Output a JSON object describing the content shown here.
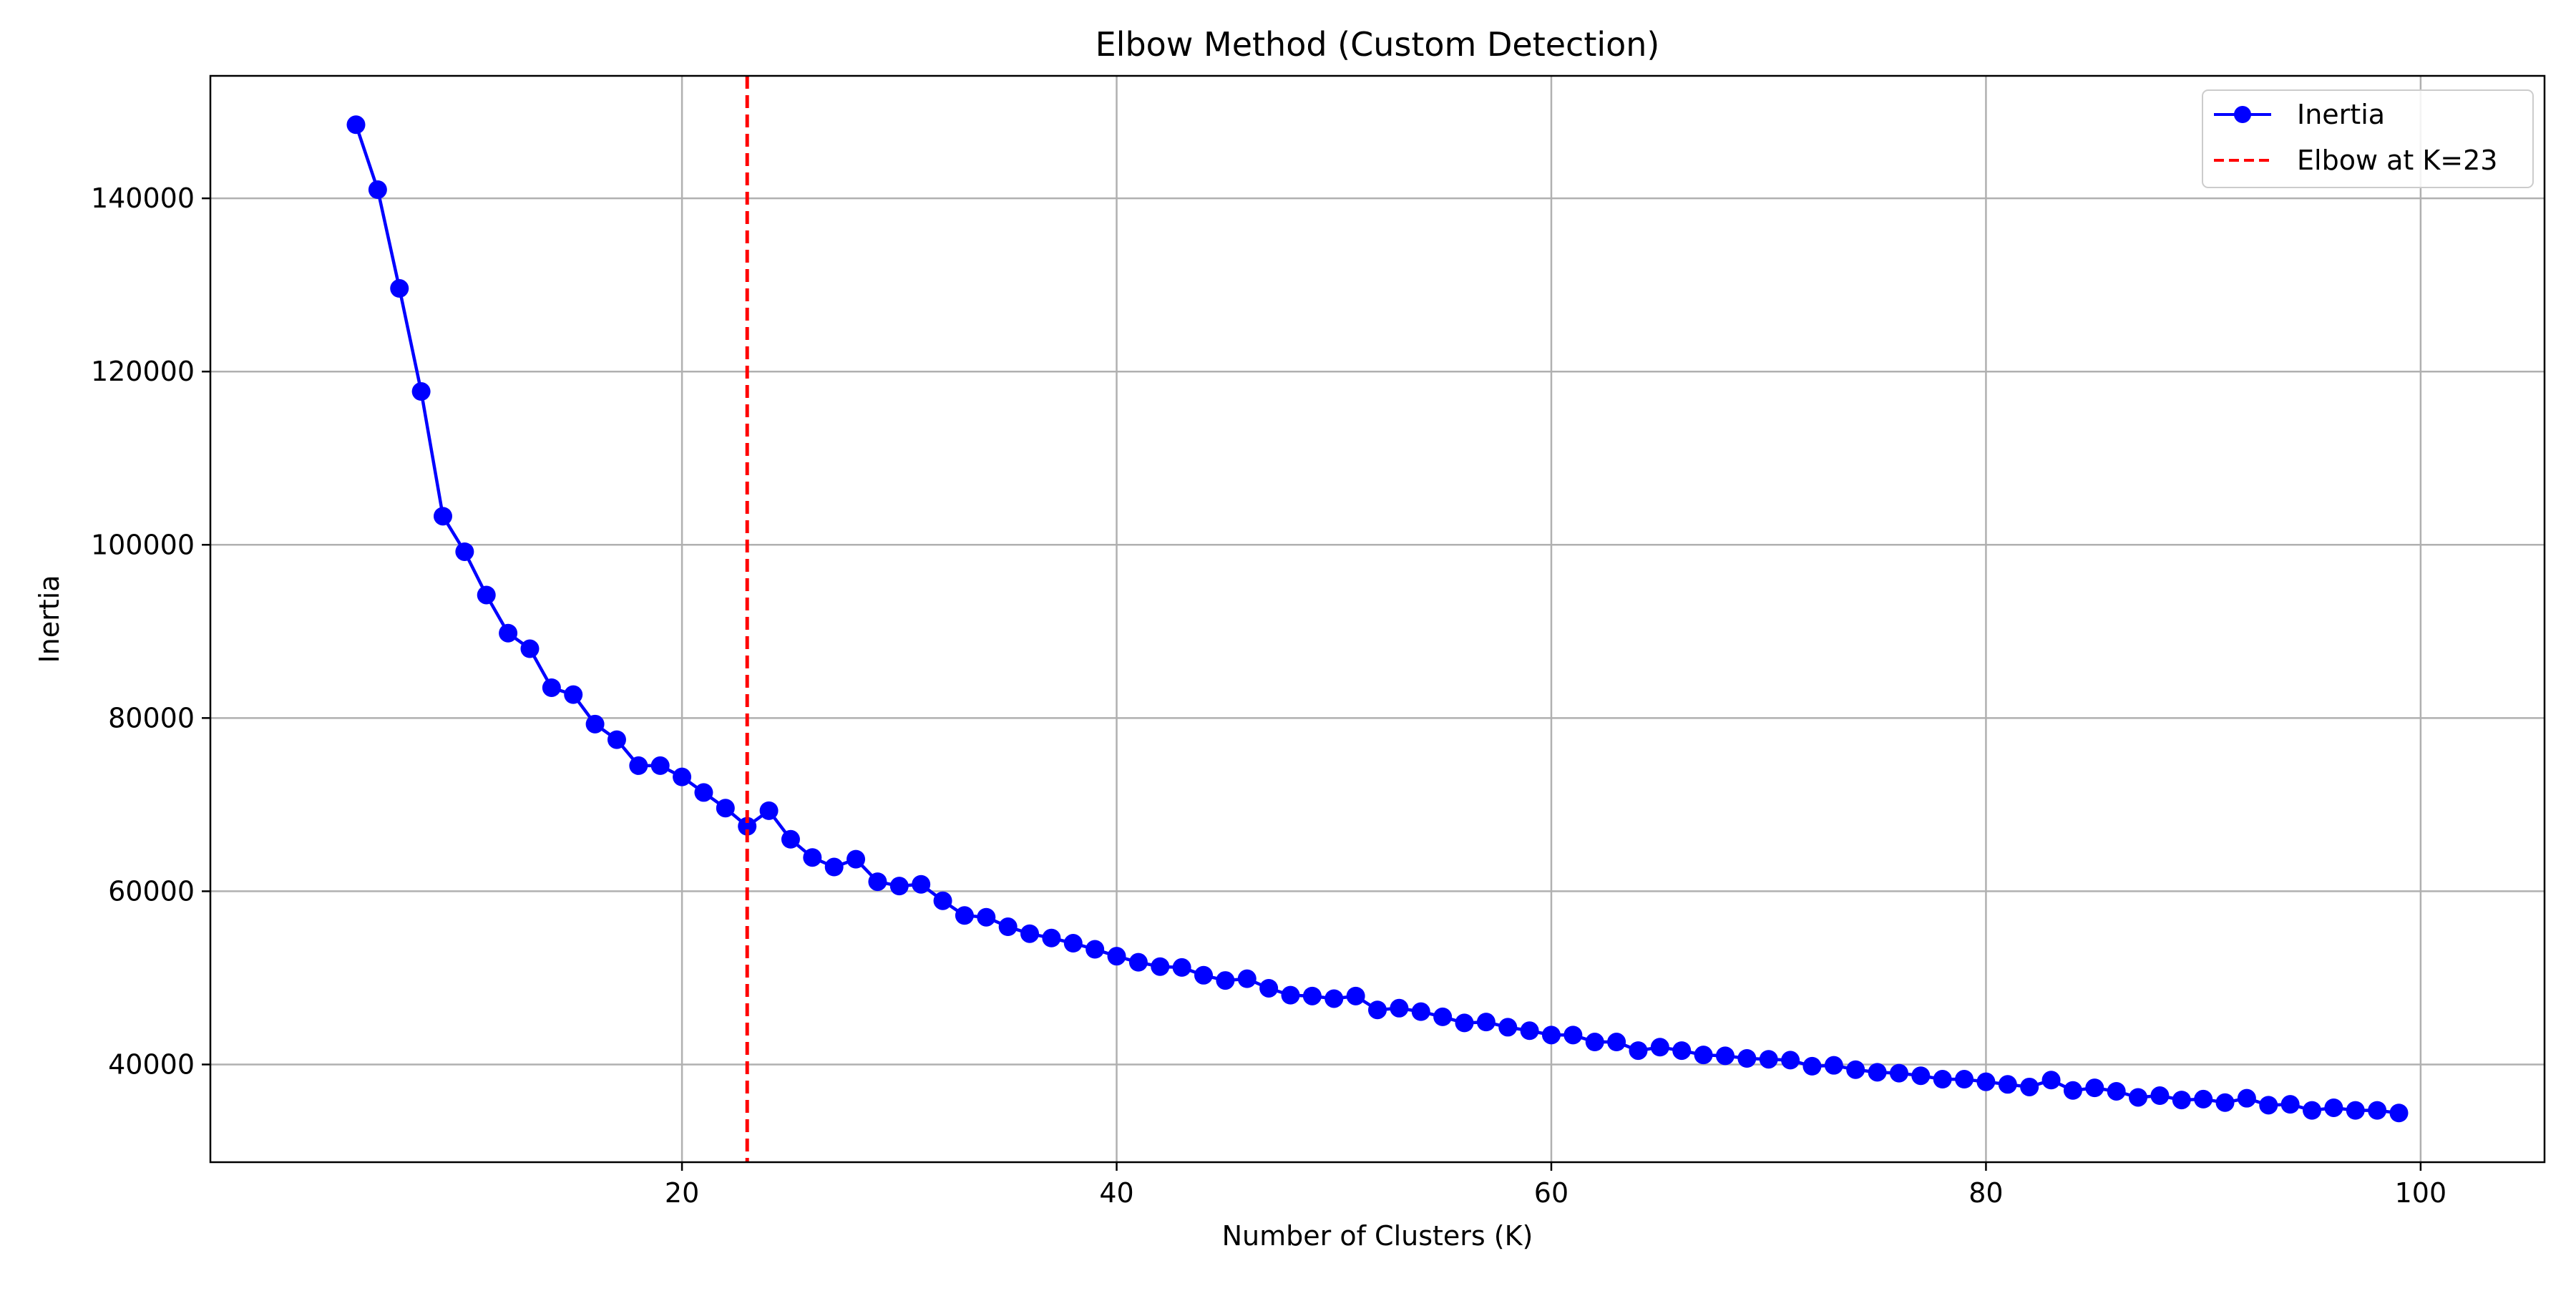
{
  "chart_data": {
    "type": "line",
    "title": "Elbow Method (Custom Detection)",
    "xlabel": "Number of Clusters (K)",
    "ylabel": "Inertia",
    "xlim": [
      -1.7,
      105.7
    ],
    "ylim": [
      28720,
      154140
    ],
    "xticks": [
      20,
      40,
      60,
      80,
      100
    ],
    "yticks": [
      40000,
      60000,
      80000,
      100000,
      120000,
      140000
    ],
    "grid": true,
    "legend_position": "top-right",
    "series": [
      {
        "name": "Inertia",
        "color": "#0000ff",
        "marker": "circle",
        "x": [
          5,
          6,
          7,
          8,
          9,
          10,
          11,
          12,
          13,
          14,
          15,
          16,
          17,
          18,
          19,
          20,
          21,
          22,
          23,
          24,
          25,
          26,
          27,
          28,
          29,
          30,
          31,
          32,
          33,
          34,
          35,
          36,
          37,
          38,
          39,
          40,
          41,
          42,
          43,
          44,
          45,
          46,
          47,
          48,
          49,
          50,
          51,
          52,
          53,
          54,
          55,
          56,
          57,
          58,
          59,
          60,
          61,
          62,
          63,
          64,
          65,
          66,
          67,
          68,
          69,
          70,
          71,
          72,
          73,
          74,
          75,
          76,
          77,
          78,
          79,
          80,
          81,
          82,
          83,
          84,
          85,
          86,
          87,
          88,
          89,
          90,
          91,
          92,
          93,
          94,
          95,
          96,
          97,
          98,
          99
        ],
        "y": [
          148500,
          141000,
          129600,
          117700,
          103300,
          99200,
          94200,
          89800,
          88000,
          83500,
          82700,
          79300,
          77500,
          74500,
          74500,
          73200,
          71400,
          69600,
          67500,
          69300,
          66000,
          63900,
          62800,
          63700,
          61100,
          60600,
          60800,
          58900,
          57200,
          57000,
          55900,
          55100,
          54600,
          54000,
          53300,
          52500,
          51800,
          51300,
          51200,
          50300,
          49700,
          49900,
          48800,
          48000,
          47900,
          47600,
          47900,
          46300,
          46500,
          46100,
          45500,
          44800,
          44900,
          44300,
          43900,
          43400,
          43400,
          42600,
          42600,
          41600,
          42000,
          41600,
          41100,
          41000,
          40700,
          40600,
          40500,
          39800,
          39900,
          39400,
          39100,
          39000,
          38700,
          38300,
          38300,
          38000,
          37700,
          37400,
          38200,
          37000,
          37300,
          36900,
          36200,
          36400,
          35900,
          36000,
          35600,
          36100,
          35300,
          35400,
          34700,
          35000,
          34700,
          34700,
          34400
        ]
      }
    ],
    "annotations": [
      {
        "type": "vline",
        "x": 23,
        "color": "#ff0000",
        "style": "dashed",
        "label": "Elbow at K=23"
      }
    ]
  }
}
